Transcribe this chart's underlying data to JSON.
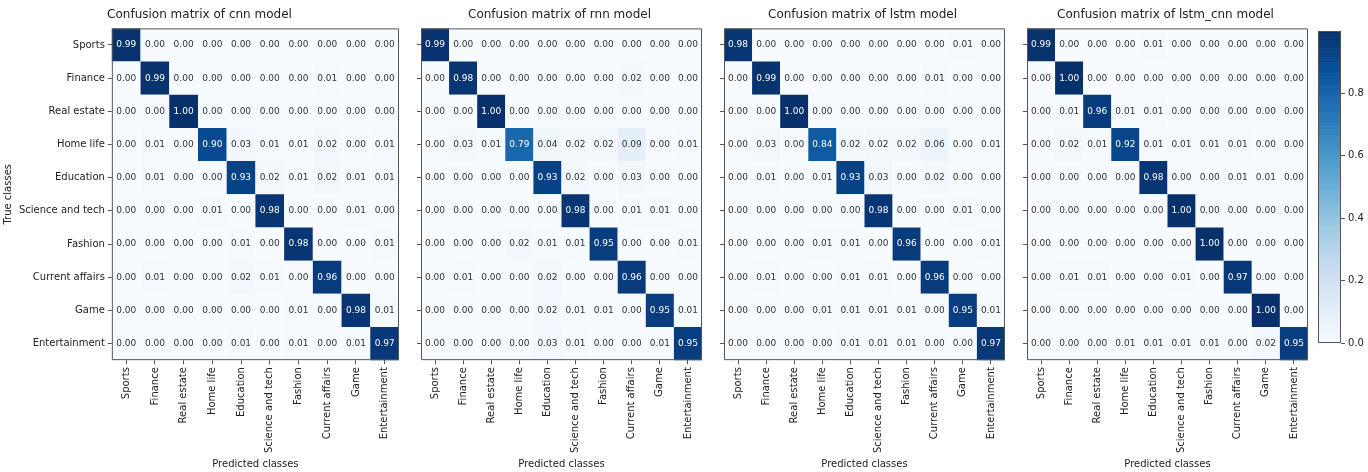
{
  "chart_data": [
    {
      "type": "heatmap",
      "title": "Confusion matrix of cnn model",
      "xlabel": "Predicted classes",
      "ylabel": "True classes",
      "categories": [
        "Sports",
        "Finance",
        "Real estate",
        "Home life",
        "Education",
        "Science and tech",
        "Fashion",
        "Current affairs",
        "Game",
        "Entertainment"
      ],
      "y_categories": [
        "Sports",
        "Finance",
        "Real estate",
        "Home life",
        "Education",
        "Science and tech",
        "Fashion",
        "Current affairs",
        "Game",
        "Entertainment"
      ],
      "cells": [
        [
          0.99,
          0,
          0,
          0,
          0,
          0,
          0,
          0,
          0,
          0
        ],
        [
          0,
          0.99,
          0,
          0,
          0,
          0,
          0,
          0.01,
          0,
          0
        ],
        [
          0,
          0,
          1,
          0,
          0,
          0,
          0,
          0,
          0,
          0
        ],
        [
          0,
          0.01,
          0,
          0.9,
          0.03,
          0.01,
          0.01,
          0.02,
          0,
          0.01
        ],
        [
          0,
          0.01,
          0,
          0,
          0.93,
          0.02,
          0.01,
          0.02,
          0.01,
          0.01
        ],
        [
          0,
          0,
          0,
          0.01,
          0,
          0.98,
          0,
          0,
          0.01,
          0
        ],
        [
          0,
          0,
          0,
          0,
          0.01,
          0,
          0.98,
          0,
          0,
          0.01
        ],
        [
          0,
          0.01,
          0,
          0,
          0.02,
          0.01,
          0,
          0.96,
          0,
          0
        ],
        [
          0,
          0,
          0,
          0,
          0,
          0,
          0.01,
          0,
          0.98,
          0.01
        ],
        [
          0,
          0,
          0,
          0,
          0.01,
          0,
          0.01,
          0,
          0.01,
          0.97
        ]
      ],
      "cell_labels": [
        [
          "0.99",
          "0.00",
          "0.00",
          "0.00",
          "0.00",
          "0.00",
          "0.00",
          "0.00",
          "0.00",
          "0.00"
        ],
        [
          "0.00",
          "0.99",
          "0.00",
          "0.00",
          "0.00",
          "0.00",
          "0.00",
          "0.01",
          "0.00",
          "0.00"
        ],
        [
          "0.00",
          "0.00",
          "1.00",
          "0.00",
          "0.00",
          "0.00",
          "0.00",
          "0.00",
          "0.00",
          "0.00"
        ],
        [
          "0.00",
          "0.01",
          "0.00",
          "0.90",
          "0.03",
          "0.01",
          "0.01",
          "0.02",
          "0.00",
          "0.01"
        ],
        [
          "0.00",
          "0.01",
          "0.00",
          "0.00",
          "0.93",
          "0.02",
          "0.01",
          "0.02",
          "0.01",
          "0.01"
        ],
        [
          "0.00",
          "0.00",
          "0.00",
          "0.01",
          "0.00",
          "0.98",
          "0.00",
          "0.00",
          "0.01",
          "0.00"
        ],
        [
          "0.00",
          "0.00",
          "0.00",
          "0.00",
          "0.01",
          "0.00",
          "0.98",
          "0.00",
          "0.00",
          "0.01"
        ],
        [
          "0.00",
          "0.01",
          "0.00",
          "0.00",
          "0.02",
          "0.01",
          "0.00",
          "0.96",
          "0.00",
          "0.00"
        ],
        [
          "0.00",
          "0.00",
          "0.00",
          "0.00",
          "0.00",
          "0.00",
          "0.01",
          "0.00",
          "0.98",
          "0.01"
        ],
        [
          "0.00",
          "0.00",
          "0.00",
          "0.00",
          "0.01",
          "0.00",
          "0.01",
          "0.00",
          "0.01",
          "0.97"
        ]
      ]
    },
    {
      "type": "heatmap",
      "title": "Confusion matrix of rnn model",
      "xlabel": "Predicted classes",
      "tick_labels": "x",
      "categories": [
        "Sports",
        "Finance",
        "Real estate",
        "Home life",
        "Education",
        "Science and tech",
        "Fashion",
        "Current affairs",
        "Game",
        "Entertainment"
      ],
      "y_categories": [
        null,
        null,
        null,
        null,
        null,
        null,
        null,
        null,
        null,
        null
      ],
      "cells": [
        [
          0.99,
          0,
          0,
          0,
          0,
          0,
          0,
          0,
          0,
          0
        ],
        [
          0,
          0.98,
          0,
          0,
          0,
          0,
          0,
          0.02,
          0,
          0
        ],
        [
          0,
          0,
          1,
          0,
          0,
          0,
          0,
          0,
          0,
          0
        ],
        [
          0,
          0.03,
          0.01,
          0.79,
          0.04,
          0.02,
          0.02,
          0.09,
          0,
          0.01
        ],
        [
          0,
          0,
          0,
          0,
          0.93,
          0.02,
          0,
          0.03,
          0,
          0
        ],
        [
          0,
          0,
          0,
          0,
          0,
          0.98,
          0,
          0.01,
          0.01,
          0
        ],
        [
          0,
          0,
          0,
          0.02,
          0.01,
          0.01,
          0.95,
          0,
          0,
          0.01
        ],
        [
          0,
          0.01,
          0,
          0,
          0.02,
          0,
          0,
          0.96,
          0,
          0
        ],
        [
          0,
          0,
          0,
          0,
          0.02,
          0.01,
          0.01,
          0,
          0.95,
          0.01
        ],
        [
          0,
          0,
          0,
          0,
          0.03,
          0.01,
          0,
          0,
          0.01,
          0.95
        ]
      ],
      "cell_labels": [
        [
          "0.99",
          "0.00",
          "0.00",
          "0.00",
          "0.00",
          "0.00",
          "0.00",
          "0.00",
          "0.00",
          "0.00"
        ],
        [
          "0.00",
          "0.98",
          "0.00",
          "0.00",
          "0.00",
          "0.00",
          "0.00",
          "0.02",
          "0.00",
          "0.00"
        ],
        [
          "0.00",
          "0.00",
          "1.00",
          "0.00",
          "0.00",
          "0.00",
          "0.00",
          "0.00",
          "0.00",
          "0.00"
        ],
        [
          "0.00",
          "0.03",
          "0.01",
          "0.79",
          "0.04",
          "0.02",
          "0.02",
          "0.09",
          "0.00",
          "0.01"
        ],
        [
          "0.00",
          "0.00",
          "0.00",
          "0.00",
          "0.93",
          "0.02",
          "0.00",
          "0.03",
          "0.00",
          "0.00"
        ],
        [
          "0.00",
          "0.00",
          "0.00",
          "0.00",
          "0.00",
          "0.98",
          "0.00",
          "0.01",
          "0.01",
          "0.00"
        ],
        [
          "0.00",
          "0.00",
          "0.00",
          "0.02",
          "0.01",
          "0.01",
          "0.95",
          "0.00",
          "0.00",
          "0.01"
        ],
        [
          "0.00",
          "0.01",
          "0.00",
          "0.00",
          "0.02",
          "0.00",
          "0.00",
          "0.96",
          "0.00",
          "0.00"
        ],
        [
          "0.00",
          "0.00",
          "0.00",
          "0.00",
          "0.02",
          "0.01",
          "0.01",
          "0.00",
          "0.95",
          "0.01"
        ],
        [
          "0.00",
          "0.00",
          "0.00",
          "0.00",
          "0.03",
          "0.01",
          "0.00",
          "0.00",
          "0.01",
          "0.95"
        ]
      ]
    },
    {
      "type": "heatmap",
      "title": "Confusion matrix of lstm model",
      "xlabel": "Predicted classes",
      "tick_labels": "x",
      "categories": [
        "Sports",
        "Finance",
        "Real estate",
        "Home life",
        "Education",
        "Science and tech",
        "Fashion",
        "Current affairs",
        "Game",
        "Entertainment"
      ],
      "y_categories": [
        null,
        null,
        null,
        null,
        null,
        null,
        null,
        null,
        null,
        null
      ],
      "cells": [
        [
          0.98,
          0,
          0,
          0,
          0,
          0,
          0,
          0,
          0.01,
          0
        ],
        [
          0,
          0.99,
          0,
          0,
          0,
          0,
          0,
          0.01,
          0,
          0
        ],
        [
          0,
          0,
          1,
          0,
          0,
          0,
          0,
          0,
          0,
          0
        ],
        [
          0,
          0.03,
          0,
          0.84,
          0.02,
          0.02,
          0.02,
          0.06,
          0,
          0.01
        ],
        [
          0,
          0.01,
          0,
          0.01,
          0.93,
          0.03,
          0,
          0.02,
          0,
          0
        ],
        [
          0,
          0,
          0,
          0,
          0,
          0.98,
          0,
          0,
          0.01,
          0
        ],
        [
          0,
          0,
          0,
          0.01,
          0.01,
          0,
          0.96,
          0,
          0,
          0.01
        ],
        [
          0,
          0.01,
          0,
          0,
          0.01,
          0.01,
          0,
          0.96,
          0,
          0
        ],
        [
          0,
          0,
          0,
          0.01,
          0.01,
          0.01,
          0.01,
          0,
          0.95,
          0.01
        ],
        [
          0,
          0,
          0,
          0,
          0.01,
          0.01,
          0.01,
          0,
          0,
          0.97
        ]
      ],
      "cell_labels": [
        [
          "0.98",
          "0.00",
          "0.00",
          "0.00",
          "0.00",
          "0.00",
          "0.00",
          "0.00",
          "0.01",
          "0.00"
        ],
        [
          "0.00",
          "0.99",
          "0.00",
          "0.00",
          "0.00",
          "0.00",
          "0.00",
          "0.01",
          "0.00",
          "0.00"
        ],
        [
          "0.00",
          "0.00",
          "1.00",
          "0.00",
          "0.00",
          "0.00",
          "0.00",
          "0.00",
          "0.00",
          "0.00"
        ],
        [
          "0.00",
          "0.03",
          "0.00",
          "0.84",
          "0.02",
          "0.02",
          "0.02",
          "0.06",
          "0.00",
          "0.01"
        ],
        [
          "0.00",
          "0.01",
          "0.00",
          "0.01",
          "0.93",
          "0.03",
          "0.00",
          "0.02",
          "0.00",
          "0.00"
        ],
        [
          "0.00",
          "0.00",
          "0.00",
          "0.00",
          "0.00",
          "0.98",
          "0.00",
          "0.00",
          "0.01",
          "0.00"
        ],
        [
          "0.00",
          "0.00",
          "0.00",
          "0.01",
          "0.01",
          "0.00",
          "0.96",
          "0.00",
          "0.00",
          "0.01"
        ],
        [
          "0.00",
          "0.01",
          "0.00",
          "0.00",
          "0.01",
          "0.01",
          "0.00",
          "0.96",
          "0.00",
          "0.00"
        ],
        [
          "0.00",
          "0.00",
          "0.00",
          "0.01",
          "0.01",
          "0.01",
          "0.01",
          "0.00",
          "0.95",
          "0.01"
        ],
        [
          "0.00",
          "0.00",
          "0.00",
          "0.00",
          "0.01",
          "0.01",
          "0.01",
          "0.00",
          "0.00",
          "0.97"
        ]
      ]
    },
    {
      "type": "heatmap",
      "title": "Confusion matrix of lstm_cnn model",
      "xlabel": "Predicted classes",
      "tick_labels": "x",
      "clim": [
        0,
        1
      ],
      "cticks": [
        {
          "value": 0,
          "label": "0.0"
        },
        {
          "value": 0.2,
          "label": "0.2"
        },
        {
          "value": 0.4,
          "label": "0.4"
        },
        {
          "value": 0.6,
          "label": "0.6"
        },
        {
          "value": 0.8,
          "label": "0.8"
        }
      ],
      "categories": [
        "Sports",
        "Finance",
        "Real estate",
        "Home life",
        "Education",
        "Science and tech",
        "Fashion",
        "Current affairs",
        "Game",
        "Entertainment"
      ],
      "y_categories": [
        null,
        null,
        null,
        null,
        null,
        null,
        null,
        null,
        null,
        null
      ],
      "cells": [
        [
          0.99,
          0,
          0,
          0,
          0.01,
          0,
          0,
          0,
          0,
          0
        ],
        [
          0,
          1,
          0,
          0,
          0,
          0,
          0,
          0,
          0,
          0
        ],
        [
          0,
          0.01,
          0.96,
          0.01,
          0.01,
          0,
          0,
          0,
          0,
          0
        ],
        [
          0,
          0.02,
          0.01,
          0.92,
          0.01,
          0.01,
          0.01,
          0.01,
          0,
          0
        ],
        [
          0,
          0,
          0,
          0,
          0.98,
          0,
          0,
          0.01,
          0.01,
          0
        ],
        [
          0,
          0,
          0,
          0,
          0,
          1,
          0,
          0,
          0,
          0
        ],
        [
          0,
          0,
          0,
          0,
          0,
          0,
          1,
          0,
          0,
          0
        ],
        [
          0,
          0.01,
          0.01,
          0,
          0,
          0.01,
          0,
          0.97,
          0,
          0
        ],
        [
          0,
          0,
          0,
          0,
          0,
          0,
          0,
          0,
          1,
          0
        ],
        [
          0,
          0,
          0,
          0.01,
          0.01,
          0.01,
          0.01,
          0,
          0.02,
          0.95
        ]
      ],
      "cell_labels": [
        [
          "0.99",
          "0.00",
          "0.00",
          "0.00",
          "0.01",
          "0.00",
          "0.00",
          "0.00",
          "0.00",
          "0.00"
        ],
        [
          "0.00",
          "1.00",
          "0.00",
          "0.00",
          "0.00",
          "0.00",
          "0.00",
          "0.00",
          "0.00",
          "0.00"
        ],
        [
          "0.00",
          "0.01",
          "0.96",
          "0.01",
          "0.01",
          "0.00",
          "0.00",
          "0.00",
          "0.00",
          "0.00"
        ],
        [
          "0.00",
          "0.02",
          "0.01",
          "0.92",
          "0.01",
          "0.01",
          "0.01",
          "0.01",
          "0.00",
          "0.00"
        ],
        [
          "0.00",
          "0.00",
          "0.00",
          "0.00",
          "0.98",
          "0.00",
          "0.00",
          "0.01",
          "0.01",
          "0.00"
        ],
        [
          "0.00",
          "0.00",
          "0.00",
          "0.00",
          "0.00",
          "1.00",
          "0.00",
          "0.00",
          "0.00",
          "0.00"
        ],
        [
          "0.00",
          "0.00",
          "0.00",
          "0.00",
          "0.00",
          "0.00",
          "1.00",
          "0.00",
          "0.00",
          "0.00"
        ],
        [
          "0.00",
          "0.01",
          "0.01",
          "0.00",
          "0.00",
          "0.01",
          "0.00",
          "0.97",
          "0.00",
          "0.00"
        ],
        [
          "0.00",
          "0.00",
          "0.00",
          "0.00",
          "0.00",
          "0.00",
          "0.00",
          "0.00",
          "1.00",
          "0.00"
        ],
        [
          "0.00",
          "0.00",
          "0.00",
          "0.01",
          "0.01",
          "0.01",
          "0.01",
          "0.00",
          "0.02",
          "0.95"
        ]
      ]
    }
  ]
}
